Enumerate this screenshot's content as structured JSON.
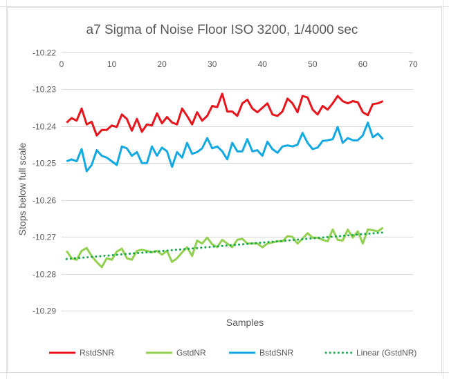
{
  "chart_data": {
    "type": "line",
    "title": "a7 Sigma of Noise Floor ISO 3200, 1/4000 sec",
    "xlabel": "Samples",
    "ylabel": "Stops below full scale",
    "xlim": [
      0,
      70
    ],
    "ylim": [
      -10.29,
      -10.22
    ],
    "x_ticks": [
      0,
      10,
      20,
      30,
      40,
      50,
      60,
      70
    ],
    "y_ticks": [
      -10.22,
      -10.23,
      -10.24,
      -10.25,
      -10.26,
      -10.27,
      -10.28,
      -10.29
    ],
    "x_tick_labels": [
      "0",
      "10",
      "20",
      "30",
      "40",
      "50",
      "60",
      "70"
    ],
    "y_tick_labels": [
      "-10.22",
      "-10.23",
      "-10.24",
      "-10.25",
      "-10.26",
      "-10.27",
      "-10.28",
      "-10.29"
    ],
    "x_axis_position": "top",
    "grid": "horizontal",
    "legend_position": "bottom",
    "x": [
      1,
      2,
      3,
      4,
      5,
      6,
      7,
      8,
      9,
      10,
      11,
      12,
      13,
      14,
      15,
      16,
      17,
      18,
      19,
      20,
      21,
      22,
      23,
      24,
      25,
      26,
      27,
      28,
      29,
      30,
      31,
      32,
      33,
      34,
      35,
      36,
      37,
      38,
      39,
      40,
      41,
      42,
      43,
      44,
      45,
      46,
      47,
      48,
      49,
      50,
      51,
      52,
      53,
      54,
      55,
      56,
      57,
      58,
      59,
      60,
      61,
      62,
      63,
      64
    ],
    "series": [
      {
        "name": "RstdSNR",
        "color": "#e8141b",
        "style": "solid",
        "values": [
          -10.239,
          -10.2378,
          -10.2385,
          -10.2352,
          -10.2395,
          -10.2388,
          -10.2425,
          -10.241,
          -10.241,
          -10.2398,
          -10.2402,
          -10.2368,
          -10.238,
          -10.2412,
          -10.238,
          -10.2415,
          -10.2395,
          -10.2398,
          -10.2365,
          -10.2392,
          -10.2375,
          -10.239,
          -10.2395,
          -10.2352,
          -10.2372,
          -10.2395,
          -10.2362,
          -10.2385,
          -10.2372,
          -10.2345,
          -10.2348,
          -10.2312,
          -10.236,
          -10.236,
          -10.2372,
          -10.2338,
          -10.2328,
          -10.2352,
          -10.2362,
          -10.235,
          -10.2338,
          -10.2368,
          -10.2372,
          -10.236,
          -10.2325,
          -10.2338,
          -10.2362,
          -10.2318,
          -10.2322,
          -10.2355,
          -10.2368,
          -10.2345,
          -10.2355,
          -10.2338,
          -10.2318,
          -10.2332,
          -10.2338,
          -10.2332,
          -10.2335,
          -10.2362,
          -10.237,
          -10.234,
          -10.2338,
          -10.2332
        ]
      },
      {
        "name": "GstdNR",
        "color": "#92d050",
        "style": "solid",
        "values": [
          -10.2738,
          -10.2758,
          -10.2762,
          -10.2738,
          -10.273,
          -10.2752,
          -10.2768,
          -10.2782,
          -10.2758,
          -10.2762,
          -10.274,
          -10.2732,
          -10.2758,
          -10.2762,
          -10.2738,
          -10.2735,
          -10.2738,
          -10.2742,
          -10.2738,
          -10.2748,
          -10.2738,
          -10.2768,
          -10.2758,
          -10.2742,
          -10.2728,
          -10.2752,
          -10.271,
          -10.2718,
          -10.2702,
          -10.272,
          -10.2728,
          -10.2708,
          -10.2718,
          -10.2728,
          -10.2708,
          -10.2705,
          -10.2718,
          -10.2718,
          -10.2718,
          -10.2728,
          -10.2718,
          -10.2715,
          -10.2712,
          -10.2712,
          -10.2698,
          -10.27,
          -10.2718,
          -10.2705,
          -10.269,
          -10.2702,
          -10.2702,
          -10.2708,
          -10.2712,
          -10.268,
          -10.2708,
          -10.271,
          -10.268,
          -10.2702,
          -10.2685,
          -10.2718,
          -10.268,
          -10.2682,
          -10.2685,
          -10.2675
        ]
      },
      {
        "name": "BstdSNR",
        "color": "#12a9e2",
        "style": "solid",
        "values": [
          -10.2495,
          -10.249,
          -10.2495,
          -10.2462,
          -10.2522,
          -10.2505,
          -10.2465,
          -10.248,
          -10.2485,
          -10.2495,
          -10.2505,
          -10.2455,
          -10.246,
          -10.248,
          -10.247,
          -10.25,
          -10.25,
          -10.2455,
          -10.248,
          -10.2458,
          -10.2468,
          -10.251,
          -10.247,
          -10.2485,
          -10.2445,
          -10.2475,
          -10.247,
          -10.246,
          -10.2432,
          -10.246,
          -10.2455,
          -10.2468,
          -10.249,
          -10.2445,
          -10.2468,
          -10.2468,
          -10.2435,
          -10.2468,
          -10.2465,
          -10.248,
          -10.2442,
          -10.2462,
          -10.2472,
          -10.2455,
          -10.2452,
          -10.2455,
          -10.245,
          -10.2418,
          -10.2445,
          -10.2462,
          -10.2458,
          -10.244,
          -10.2438,
          -10.2435,
          -10.2402,
          -10.2445,
          -10.2432,
          -10.2438,
          -10.2438,
          -10.2425,
          -10.239,
          -10.243,
          -10.242,
          -10.2435
        ]
      },
      {
        "name": "Linear (GstdNR)",
        "color": "#14a74b",
        "style": "dotted",
        "trend_start": [
          1,
          -10.276
        ],
        "trend_end": [
          64,
          -10.2688
        ]
      }
    ]
  }
}
